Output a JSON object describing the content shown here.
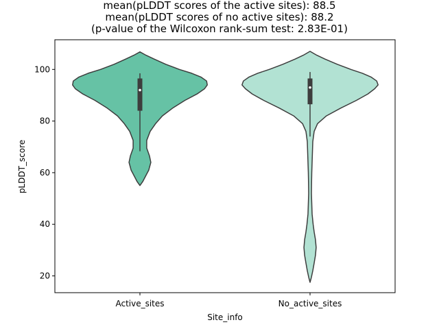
{
  "chart_data": {
    "type": "violin",
    "title_lines": [
      "mean(pLDDT scores of the active sites): 88.5",
      "mean(pLDDT scores of no active sites): 88.2",
      "(p-value of the Wilcoxon rank-sum test: 2.83E-01)"
    ],
    "xlabel": "Site_info",
    "ylabel": "pLDDT_score",
    "ylim": [
      13.5,
      111.5
    ],
    "yticks": [
      20,
      40,
      60,
      80,
      100
    ],
    "categories": [
      "Active_sites",
      "No_active_sites"
    ],
    "violins": [
      {
        "category": "Active_sites",
        "color": "#66c2a5",
        "box": {
          "whisker_low": 68.3,
          "q1": 84.0,
          "median": 92.0,
          "q3": 96.5,
          "whisker_high": 98.5
        },
        "density": [
          [
            55.0,
            0.0
          ],
          [
            56.5,
            0.04
          ],
          [
            58.5,
            0.08
          ],
          [
            61.0,
            0.13
          ],
          [
            64.0,
            0.16
          ],
          [
            66.5,
            0.14
          ],
          [
            69.5,
            0.1
          ],
          [
            72.5,
            0.1
          ],
          [
            76.0,
            0.15
          ],
          [
            79.0,
            0.23
          ],
          [
            82.0,
            0.33
          ],
          [
            85.0,
            0.48
          ],
          [
            88.0,
            0.66
          ],
          [
            90.5,
            0.84
          ],
          [
            92.5,
            0.95
          ],
          [
            94.0,
            0.99
          ],
          [
            95.5,
            0.98
          ],
          [
            97.0,
            0.9
          ],
          [
            98.5,
            0.76
          ],
          [
            100.0,
            0.58
          ],
          [
            102.0,
            0.38
          ],
          [
            104.0,
            0.21
          ],
          [
            105.5,
            0.09
          ],
          [
            106.8,
            0.0
          ]
        ]
      },
      {
        "category": "No_active_sites",
        "color": "#b2e2d3",
        "box": {
          "whisker_low": 74.0,
          "q1": 86.5,
          "median": 93.0,
          "q3": 96.5,
          "whisker_high": 99.0
        },
        "density": [
          [
            17.5,
            0.0
          ],
          [
            19.5,
            0.02
          ],
          [
            22.0,
            0.04
          ],
          [
            25.0,
            0.06
          ],
          [
            28.0,
            0.08
          ],
          [
            31.0,
            0.09
          ],
          [
            34.0,
            0.08
          ],
          [
            37.0,
            0.06
          ],
          [
            40.0,
            0.045
          ],
          [
            44.0,
            0.03
          ],
          [
            48.0,
            0.025
          ],
          [
            52.0,
            0.02
          ],
          [
            56.0,
            0.022
          ],
          [
            60.0,
            0.025
          ],
          [
            64.0,
            0.03
          ],
          [
            68.0,
            0.035
          ],
          [
            72.0,
            0.04
          ],
          [
            76.0,
            0.06
          ],
          [
            79.0,
            0.11
          ],
          [
            82.0,
            0.24
          ],
          [
            85.0,
            0.45
          ],
          [
            88.0,
            0.68
          ],
          [
            90.5,
            0.85
          ],
          [
            92.5,
            0.95
          ],
          [
            94.0,
            1.0
          ],
          [
            95.5,
            0.98
          ],
          [
            97.0,
            0.9
          ],
          [
            98.5,
            0.77
          ],
          [
            100.0,
            0.6
          ],
          [
            102.0,
            0.4
          ],
          [
            104.0,
            0.22
          ],
          [
            105.5,
            0.1
          ],
          [
            107.0,
            0.0
          ]
        ]
      }
    ]
  }
}
